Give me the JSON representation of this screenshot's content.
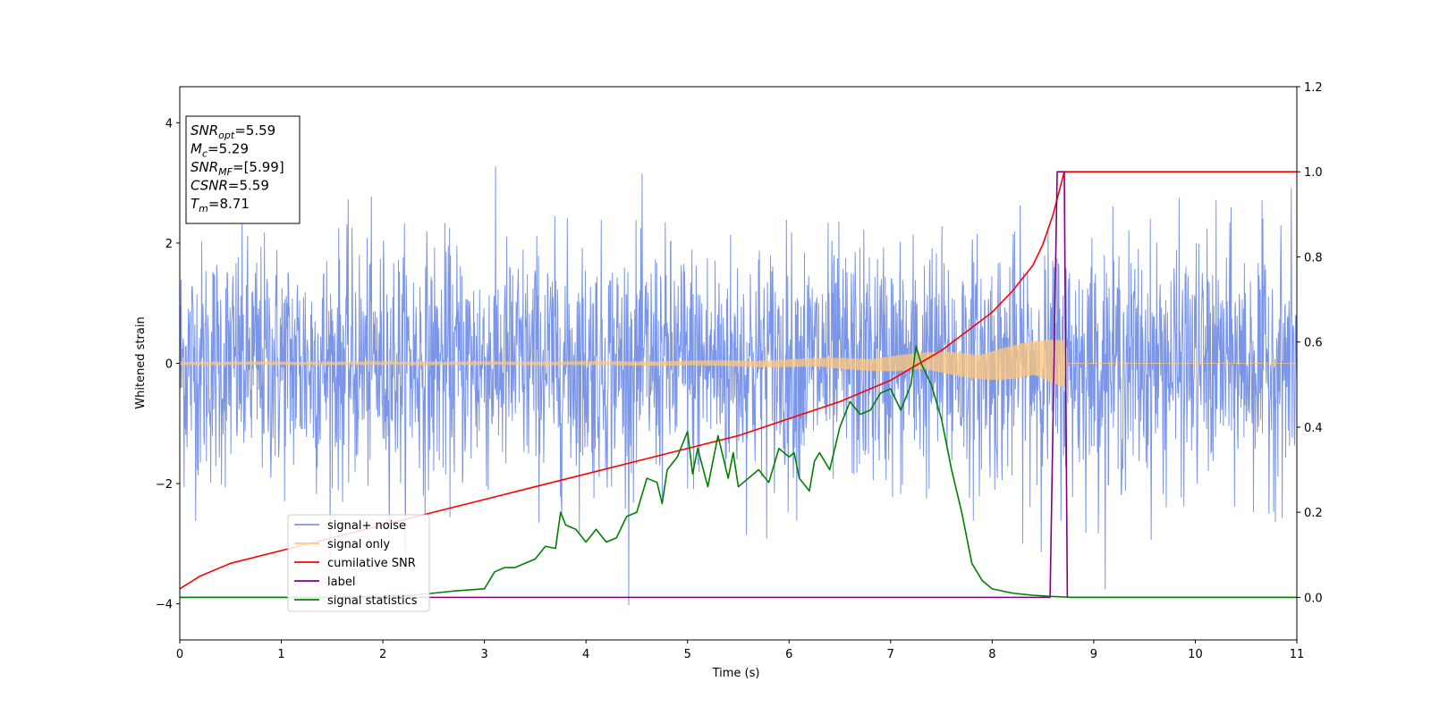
{
  "chart_data": {
    "type": "line",
    "xlabel": "Time (s)",
    "ylabel_left": "Whitened strain",
    "ylabel_right": "",
    "xlim": [
      0,
      11
    ],
    "ylim_left": [
      -4.6,
      4.6
    ],
    "ylim_right": [
      -0.1,
      1.2
    ],
    "xticks": [
      0,
      1,
      2,
      3,
      4,
      5,
      6,
      7,
      8,
      9,
      10,
      11
    ],
    "yticks_left": [
      -4,
      -2,
      0,
      2,
      4
    ],
    "yticks_right": [
      "0.0",
      "0.2",
      "0.4",
      "0.6",
      "0.8",
      "1.0",
      "1.2"
    ],
    "grid": false,
    "legend_position": "lower-left",
    "annotation": [
      {
        "base": "SNR",
        "sub": "opt",
        "text": "=5.59"
      },
      {
        "base": "M",
        "sub": "c",
        "text": "=5.29"
      },
      {
        "base": "SNR",
        "sub": "MF",
        "text": "=[5.99]"
      },
      {
        "base": "CSNR",
        "sub": "",
        "text": "=5.59"
      },
      {
        "base": "T",
        "sub": "m",
        "text": "=8.71"
      }
    ],
    "series": [
      {
        "name": "signal+ noise",
        "color": "#7b96e8",
        "axis": "left",
        "description": "whitened noise, approx. standard deviation 1 with peaks near +3.7 and -4.2",
        "std": 1.0,
        "peak_max": 3.77,
        "peak_min": -4.17
      },
      {
        "name": "signal only",
        "color": "#ffc77a",
        "axis": "left",
        "description": "chirp with amplitude rising from 0.03 to 0.45 and ending at t=8.71",
        "t_end": 8.71,
        "amp_start": 0.03,
        "amp_end": 0.45
      },
      {
        "name": "cumilative SNR",
        "color": "#ff0000",
        "axis": "right",
        "x": [
          0,
          0.2,
          0.5,
          1,
          1.5,
          2,
          2.5,
          3,
          3.5,
          4,
          4.5,
          5,
          5.5,
          6,
          6.5,
          7,
          7.5,
          8,
          8.2,
          8.4,
          8.5,
          8.6,
          8.71,
          11
        ],
        "y": [
          0.02,
          0.05,
          0.08,
          0.11,
          0.14,
          0.17,
          0.2,
          0.23,
          0.26,
          0.29,
          0.32,
          0.35,
          0.38,
          0.42,
          0.46,
          0.51,
          0.58,
          0.67,
          0.72,
          0.78,
          0.83,
          0.9,
          1.0,
          1.0
        ]
      },
      {
        "name": "label",
        "color": "#800080",
        "axis": "right",
        "x": [
          0,
          8.57,
          8.64,
          8.71,
          8.74,
          11
        ],
        "y": [
          0,
          0,
          1,
          1,
          0,
          0
        ]
      },
      {
        "name": "signal statistics",
        "color": "#008000",
        "axis": "right",
        "x": [
          0,
          0.5,
          1,
          1.5,
          2,
          2.3,
          2.5,
          2.7,
          3,
          3.1,
          3.2,
          3.3,
          3.5,
          3.6,
          3.7,
          3.75,
          3.8,
          3.9,
          4.0,
          4.1,
          4.2,
          4.3,
          4.4,
          4.5,
          4.6,
          4.7,
          4.75,
          4.8,
          4.9,
          5.0,
          5.05,
          5.1,
          5.2,
          5.3,
          5.4,
          5.45,
          5.5,
          5.6,
          5.7,
          5.8,
          5.9,
          6.0,
          6.05,
          6.1,
          6.2,
          6.25,
          6.3,
          6.4,
          6.5,
          6.6,
          6.7,
          6.8,
          6.9,
          7.0,
          7.1,
          7.2,
          7.25,
          7.3,
          7.4,
          7.5,
          7.6,
          7.7,
          7.8,
          7.9,
          8.0,
          8.2,
          8.4,
          8.6,
          8.8,
          9.0,
          9.5,
          10,
          11
        ],
        "y": [
          0,
          0,
          0,
          0,
          0.002,
          0.005,
          0.01,
          0.015,
          0.02,
          0.06,
          0.07,
          0.07,
          0.09,
          0.12,
          0.115,
          0.2,
          0.17,
          0.16,
          0.13,
          0.16,
          0.13,
          0.14,
          0.19,
          0.2,
          0.28,
          0.27,
          0.22,
          0.3,
          0.33,
          0.39,
          0.29,
          0.35,
          0.26,
          0.38,
          0.28,
          0.34,
          0.26,
          0.28,
          0.3,
          0.27,
          0.35,
          0.33,
          0.34,
          0.28,
          0.25,
          0.32,
          0.34,
          0.3,
          0.4,
          0.46,
          0.43,
          0.44,
          0.48,
          0.49,
          0.44,
          0.5,
          0.59,
          0.55,
          0.5,
          0.42,
          0.3,
          0.2,
          0.08,
          0.04,
          0.02,
          0.01,
          0.005,
          0.002,
          0,
          0,
          0,
          0,
          0
        ]
      }
    ]
  }
}
